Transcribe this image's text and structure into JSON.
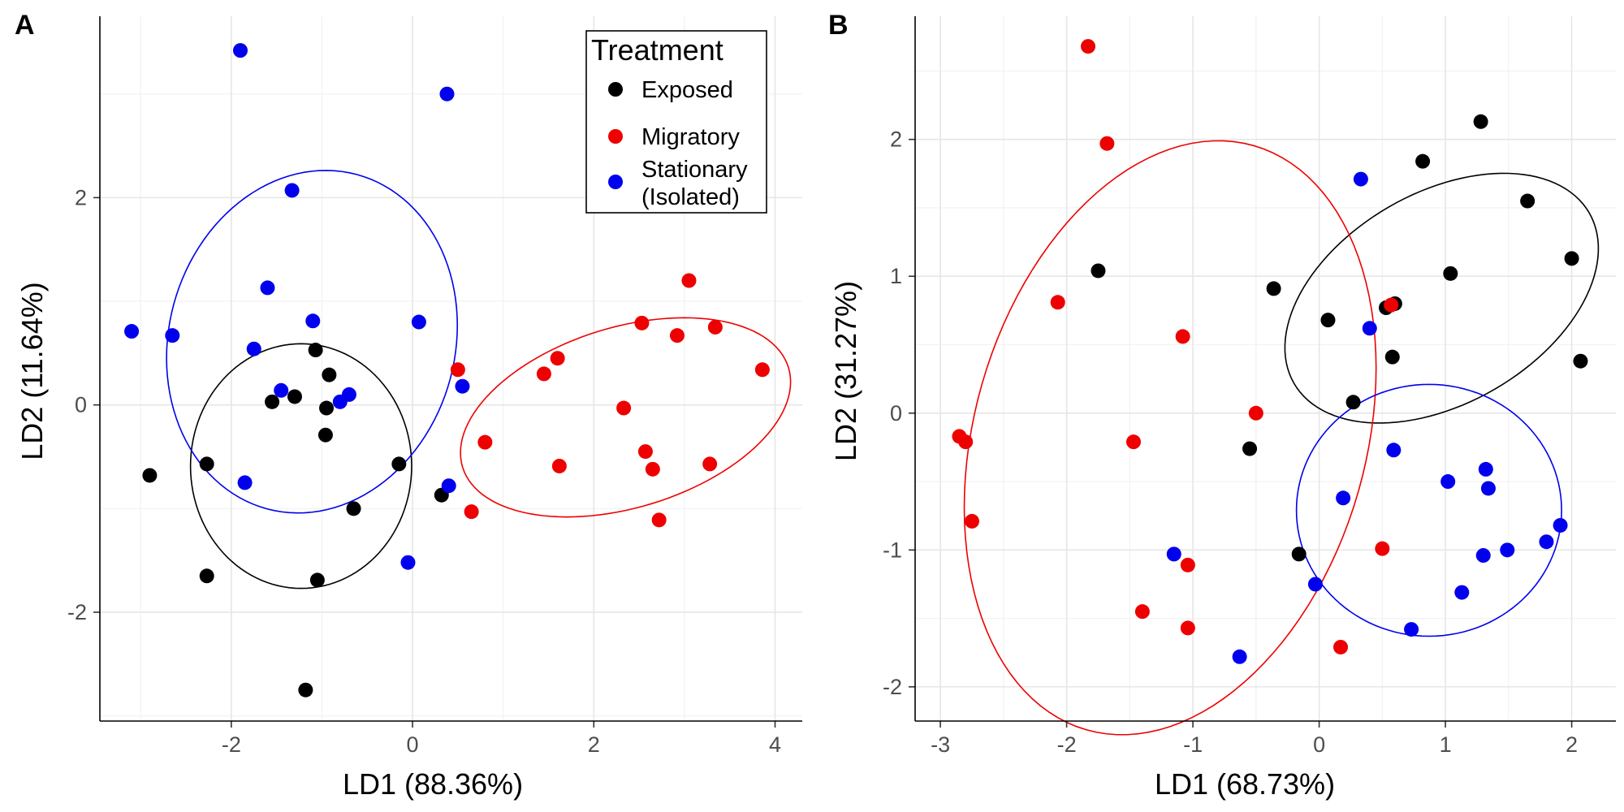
{
  "legend": {
    "title": "Treatment",
    "entries": [
      {
        "key": "exposed",
        "label_lines": [
          "Exposed"
        ],
        "color": "#000000"
      },
      {
        "key": "migratory",
        "label_lines": [
          "Migratory"
        ],
        "color": "#ee0000"
      },
      {
        "key": "stationary",
        "label_lines": [
          "Stationary",
          "(Isolated)"
        ],
        "color": "#0000ee"
      }
    ]
  },
  "chart_data": [
    {
      "panel": "A",
      "type": "scatter",
      "xlabel": "LD1 (88.36%)",
      "ylabel": "LD2 (11.64%)",
      "xlim": [
        -3.45,
        4.3
      ],
      "ylim": [
        -3.05,
        3.75
      ],
      "xticks": [
        -2,
        0,
        2,
        4
      ],
      "yticks": [
        -2,
        0,
        2
      ],
      "xtick_labels": [
        "-2",
        "0",
        "2",
        "4"
      ],
      "ytick_labels": [
        "-2",
        "0",
        "2"
      ],
      "grid": true,
      "legend_position": "top-right",
      "series": [
        {
          "key": "exposed",
          "points": [
            [
              -2.9,
              -0.68
            ],
            [
              -2.27,
              -0.57
            ],
            [
              -2.27,
              -1.65
            ],
            [
              -1.55,
              0.03
            ],
            [
              -1.3,
              0.08
            ],
            [
              -1.18,
              -2.75
            ],
            [
              -1.07,
              0.53
            ],
            [
              -1.05,
              -1.69
            ],
            [
              -0.95,
              -0.03
            ],
            [
              -0.92,
              0.29
            ],
            [
              -0.96,
              -0.29
            ],
            [
              -0.65,
              -1.0
            ],
            [
              -0.15,
              -0.57
            ],
            [
              0.32,
              -0.87
            ]
          ],
          "ellipse": {
            "cx": -1.23,
            "cy": -0.59,
            "rx": 1.22,
            "ry": 1.18,
            "angle": 0
          }
        },
        {
          "key": "migratory",
          "points": [
            [
              0.5,
              0.34
            ],
            [
              0.65,
              -1.03
            ],
            [
              0.8,
              -0.36
            ],
            [
              1.45,
              0.3
            ],
            [
              1.6,
              0.45
            ],
            [
              1.62,
              -0.59
            ],
            [
              2.33,
              -0.03
            ],
            [
              2.53,
              0.79
            ],
            [
              2.57,
              -0.45
            ],
            [
              2.65,
              -0.62
            ],
            [
              2.72,
              -1.11
            ],
            [
              2.92,
              0.67
            ],
            [
              3.05,
              1.2
            ],
            [
              3.28,
              -0.57
            ],
            [
              3.34,
              0.75
            ],
            [
              3.86,
              0.34
            ]
          ],
          "ellipse": {
            "cx": 2.35,
            "cy": -0.12,
            "rx": 1.88,
            "ry": 0.87,
            "angle": 17
          }
        },
        {
          "key": "stationary",
          "points": [
            [
              -3.1,
              0.71
            ],
            [
              -2.65,
              0.67
            ],
            [
              -1.9,
              3.42
            ],
            [
              -1.85,
              -0.75
            ],
            [
              -1.75,
              0.54
            ],
            [
              -1.6,
              1.13
            ],
            [
              -1.45,
              0.14
            ],
            [
              -1.33,
              2.07
            ],
            [
              -1.1,
              0.81
            ],
            [
              -0.8,
              0.03
            ],
            [
              -0.7,
              0.1
            ],
            [
              -0.05,
              -1.52
            ],
            [
              0.07,
              0.8
            ],
            [
              0.38,
              3.0
            ],
            [
              0.4,
              -0.78
            ],
            [
              0.55,
              0.18
            ]
          ],
          "ellipse": {
            "cx": -1.11,
            "cy": 0.61,
            "rx": 1.58,
            "ry": 1.67,
            "angle": -15
          }
        }
      ]
    },
    {
      "panel": "B",
      "type": "scatter",
      "xlabel": "LD1 (68.73%)",
      "ylabel": "LD2 (31.27%)",
      "xlim": [
        -3.2,
        2.35
      ],
      "ylim": [
        -2.25,
        2.9
      ],
      "xticks": [
        -3,
        -2,
        -1,
        0,
        1,
        2
      ],
      "yticks": [
        -2,
        -1,
        0,
        1,
        2
      ],
      "xtick_labels": [
        "-3",
        "-2",
        "-1",
        "0",
        "1",
        "2"
      ],
      "ytick_labels": [
        "-2",
        "-1",
        "0",
        "1",
        "2"
      ],
      "grid": true,
      "series": [
        {
          "key": "exposed",
          "points": [
            [
              -1.75,
              1.04
            ],
            [
              -0.36,
              0.91
            ],
            [
              -0.55,
              -0.26
            ],
            [
              -0.16,
              -1.03
            ],
            [
              0.07,
              0.68
            ],
            [
              0.27,
              0.08
            ],
            [
              0.53,
              0.77
            ],
            [
              0.6,
              0.8
            ],
            [
              0.58,
              0.41
            ],
            [
              0.82,
              1.84
            ],
            [
              1.04,
              1.02
            ],
            [
              1.28,
              2.13
            ],
            [
              1.65,
              1.55
            ],
            [
              2.0,
              1.13
            ],
            [
              2.07,
              0.38
            ]
          ],
          "ellipse": {
            "cx": 0.97,
            "cy": 0.84,
            "rx": 1.35,
            "ry": 0.77,
            "angle": 30
          }
        },
        {
          "key": "migratory",
          "points": [
            [
              -2.85,
              -0.17
            ],
            [
              -2.8,
              -0.21
            ],
            [
              -2.75,
              -0.79
            ],
            [
              -2.07,
              0.81
            ],
            [
              -1.83,
              2.68
            ],
            [
              -1.68,
              1.97
            ],
            [
              -1.47,
              -0.21
            ],
            [
              -1.4,
              -1.45
            ],
            [
              -1.08,
              0.56
            ],
            [
              -1.04,
              -1.11
            ],
            [
              -1.04,
              -1.57
            ],
            [
              -0.5,
              0.0
            ],
            [
              0.17,
              -1.71
            ],
            [
              0.5,
              -0.99
            ],
            [
              0.57,
              0.79
            ]
          ],
          "ellipse": {
            "cx": -1.18,
            "cy": -0.18,
            "rx": 1.55,
            "ry": 2.22,
            "angle": -16
          }
        },
        {
          "key": "stationary",
          "points": [
            [
              -1.15,
              -1.03
            ],
            [
              -0.63,
              -1.78
            ],
            [
              -0.03,
              -1.25
            ],
            [
              0.19,
              -0.62
            ],
            [
              0.33,
              1.71
            ],
            [
              0.4,
              0.62
            ],
            [
              0.59,
              -0.27
            ],
            [
              0.73,
              -1.58
            ],
            [
              1.02,
              -0.5
            ],
            [
              1.13,
              -1.31
            ],
            [
              1.3,
              -1.04
            ],
            [
              1.32,
              -0.41
            ],
            [
              1.34,
              -0.55
            ],
            [
              1.49,
              -1.0
            ],
            [
              1.8,
              -0.94
            ],
            [
              1.91,
              -0.82
            ]
          ],
          "ellipse": {
            "cx": 0.87,
            "cy": -0.71,
            "rx": 1.05,
            "ry": 0.92,
            "angle": 0
          }
        }
      ]
    }
  ]
}
